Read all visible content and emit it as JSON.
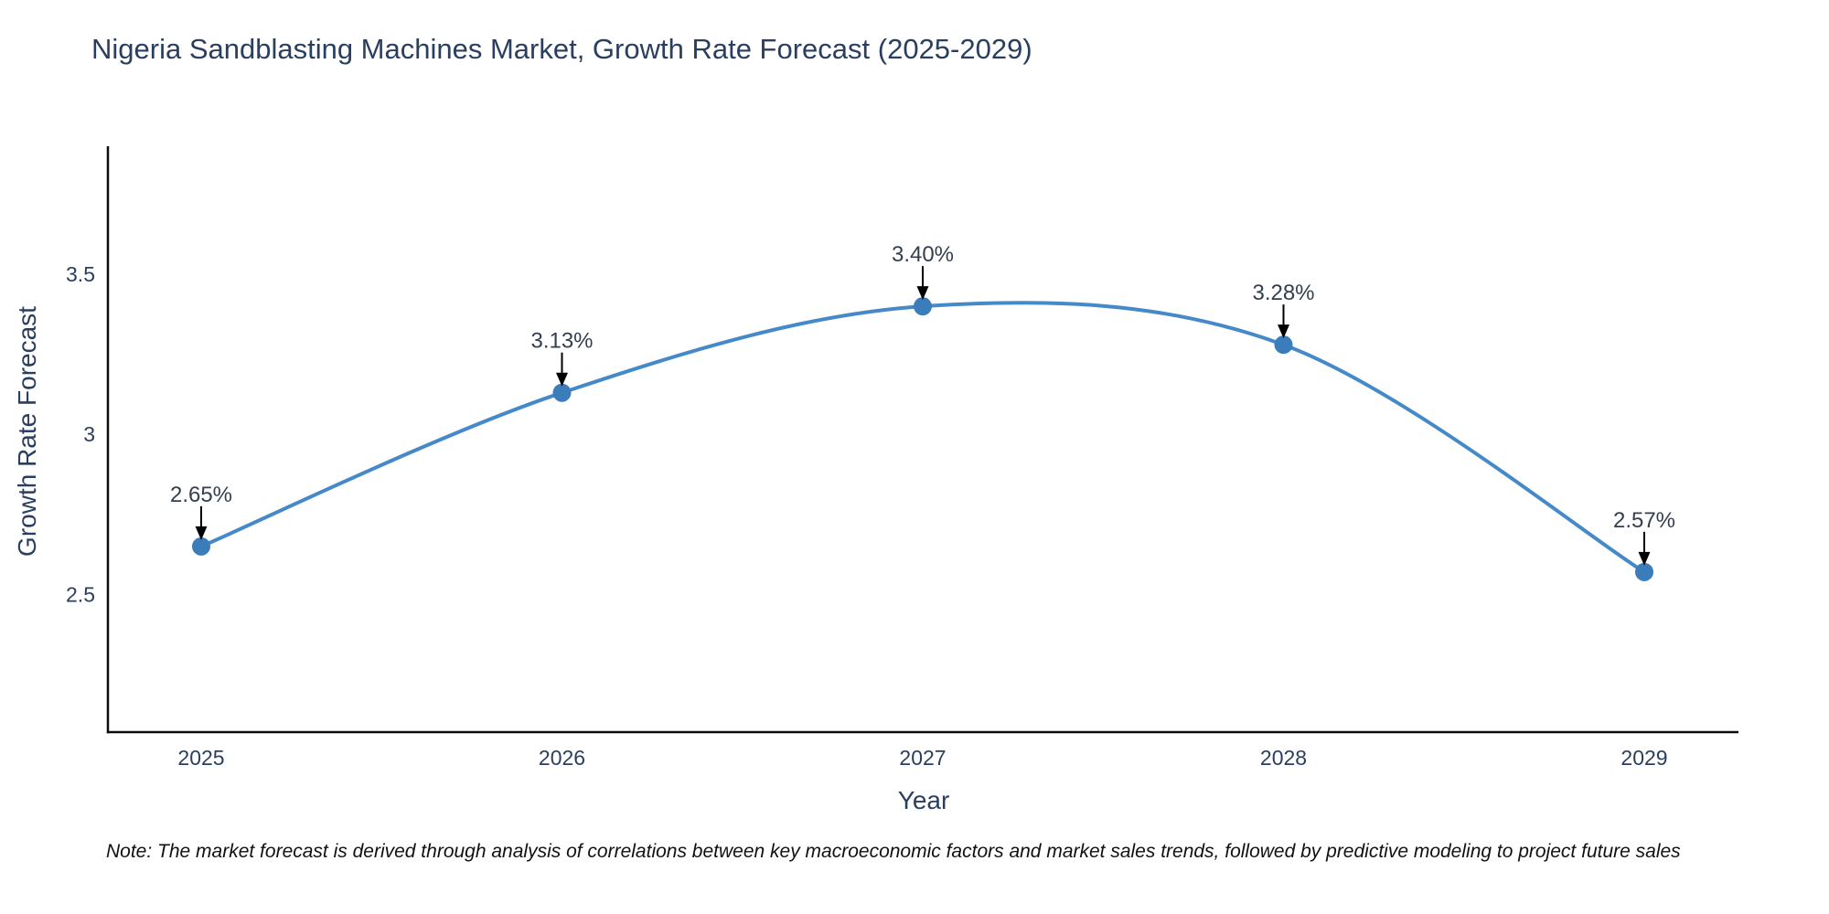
{
  "page": {
    "background": "#ffffff"
  },
  "chart_data": {
    "type": "line",
    "line_shape": "spline",
    "title": "Nigeria Sandblasting Machines Market, Growth Rate Forecast (2025-2029)",
    "xlabel": "Year",
    "ylabel": "Growth Rate Forecast",
    "categories": [
      "2025",
      "2026",
      "2027",
      "2028",
      "2029"
    ],
    "values": [
      2.65,
      3.13,
      3.4,
      3.28,
      2.57
    ],
    "annotations": [
      "2.65%",
      "3.13%",
      "3.40%",
      "3.28%",
      "2.57%"
    ],
    "yticks": [
      2.5,
      3,
      3.5
    ],
    "ytick_labels": [
      "2.5",
      "3",
      "3.5"
    ],
    "ylim": [
      2.07,
      3.9
    ],
    "grid": false,
    "legend": false,
    "colors": {
      "line": "#4589c8",
      "marker": "#3b7cba",
      "axis": "#0d0d0d",
      "tick_label": "#2a3f5f",
      "annotation_text": "#333f4f",
      "annotation_arrow": "#000000"
    }
  },
  "note": {
    "text": "Note: The market forecast is derived through analysis of correlations between key macroeconomic factors and market sales trends, followed by predictive modeling to project future sales"
  }
}
